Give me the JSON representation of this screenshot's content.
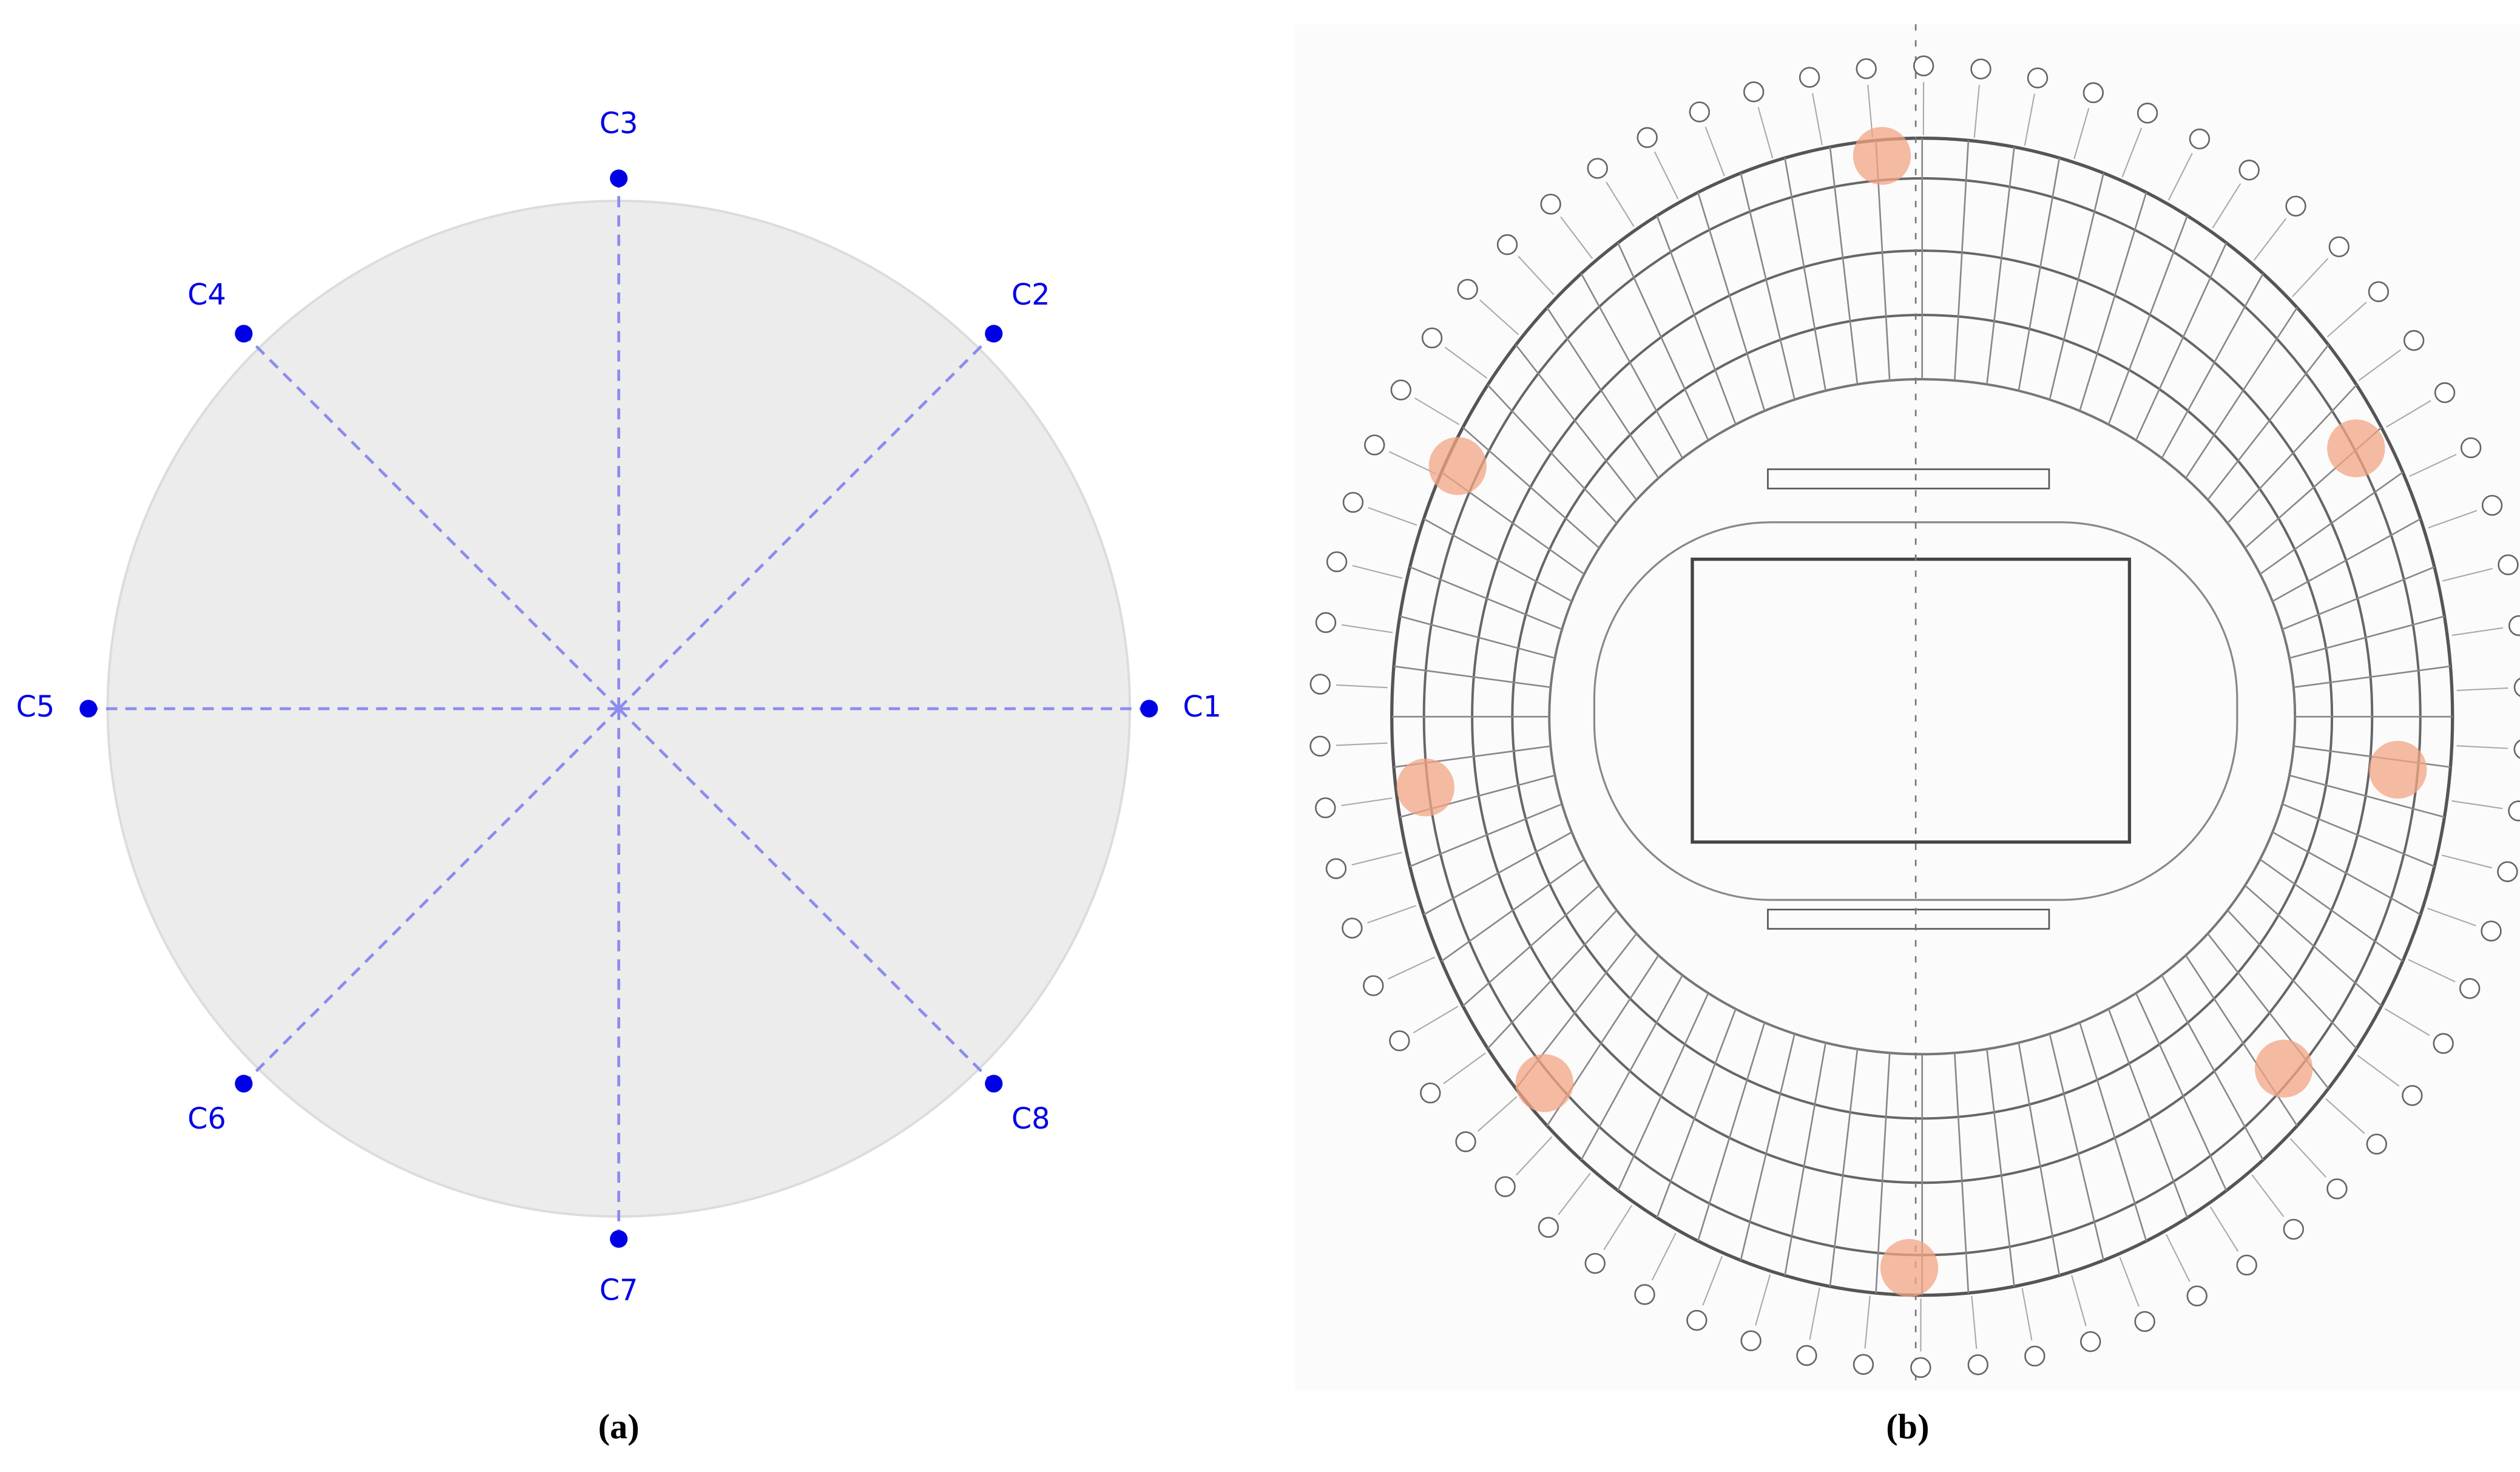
{
  "panel_a": {
    "caption": "(a)",
    "nodes": [
      {
        "label": "C1"
      },
      {
        "label": "C2"
      },
      {
        "label": "C3"
      },
      {
        "label": "C4"
      },
      {
        "label": "C5"
      },
      {
        "label": "C6"
      },
      {
        "label": "C7"
      },
      {
        "label": "C8"
      }
    ]
  },
  "panel_b": {
    "caption": "(b)"
  }
}
